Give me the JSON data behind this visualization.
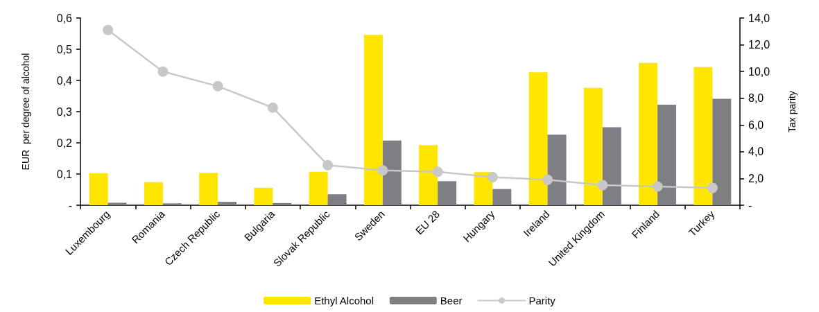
{
  "chart_data": {
    "type": "bar",
    "categories": [
      "Luxembourg",
      "Romania",
      "Czech Republic",
      "Bulgaria",
      "Slovak Republic",
      "Sweden",
      "EU 28",
      "Hungary",
      "Ireland",
      "United Kingdom",
      "Finland",
      "Turkey"
    ],
    "ylabel": "EUR  per degree of alcohol",
    "y2label": "Tax parity",
    "series": [
      {
        "name": "Ethyl Alcohol",
        "color": "#ffe600",
        "values": [
          0.103,
          0.074,
          0.104,
          0.056,
          0.107,
          0.546,
          0.193,
          0.106,
          0.426,
          0.376,
          0.456,
          0.443
        ]
      },
      {
        "name": "Beer",
        "color": "#7f7e83",
        "values": [
          0.008,
          0.006,
          0.011,
          0.007,
          0.035,
          0.207,
          0.077,
          0.052,
          0.226,
          0.25,
          0.322,
          0.341
        ]
      },
      {
        "name": "Parity",
        "type": "line",
        "axis": "y2",
        "color": "#c8c8c8",
        "values": [
          13.1,
          10.0,
          8.9,
          7.3,
          3.0,
          2.6,
          2.5,
          2.1,
          1.9,
          1.5,
          1.4,
          1.3
        ]
      }
    ],
    "ylim": [
      0,
      0.6
    ],
    "yticks": [
      {
        "value": 0,
        "label": "-"
      },
      {
        "value": 0.1,
        "label": "0,1"
      },
      {
        "value": 0.2,
        "label": "0,2"
      },
      {
        "value": 0.3,
        "label": "0,3"
      },
      {
        "value": 0.4,
        "label": "0,4"
      },
      {
        "value": 0.5,
        "label": "0,5"
      },
      {
        "value": 0.6,
        "label": "0,6"
      }
    ],
    "y2lim": [
      0,
      14
    ],
    "y2ticks": [
      {
        "value": 0,
        "label": "-"
      },
      {
        "value": 2,
        "label": "2,0"
      },
      {
        "value": 4,
        "label": "4,0"
      },
      {
        "value": 6,
        "label": "6,0"
      },
      {
        "value": 8,
        "label": "8,0"
      },
      {
        "value": 10,
        "label": "10,0"
      },
      {
        "value": 12,
        "label": "12,0"
      },
      {
        "value": 14,
        "label": "14,0"
      }
    ],
    "grid": false,
    "legend": "bottom",
    "marker": "circle",
    "line_style": "solid"
  }
}
